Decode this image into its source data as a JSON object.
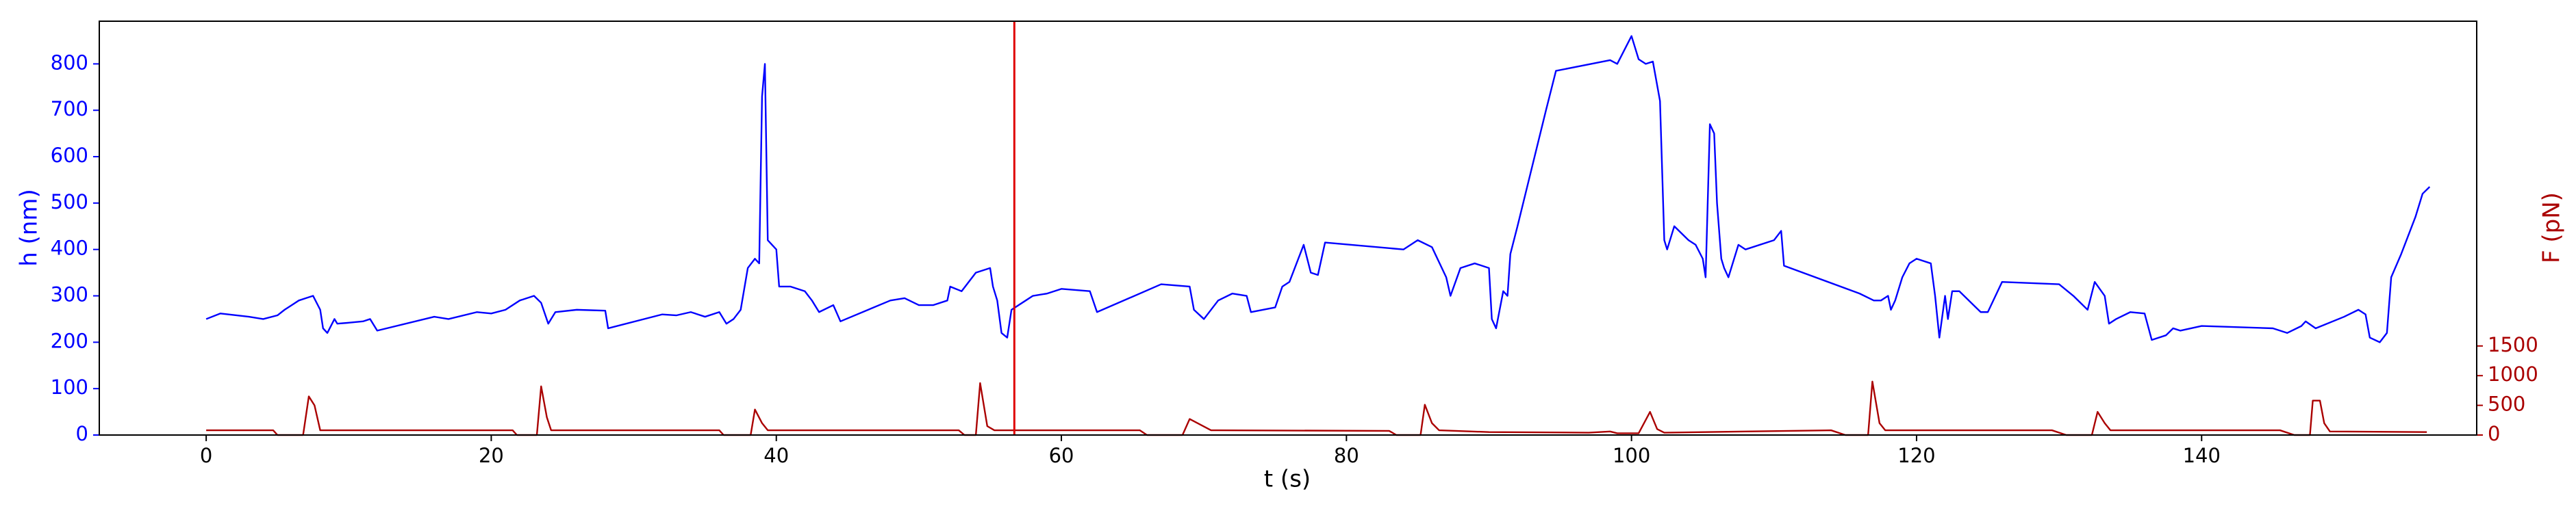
{
  "chart_data": {
    "type": "line",
    "xlabel": "t (s)",
    "ylabel": "h (nm)",
    "y2label": "F (pN)",
    "xlim": [
      -7.5,
      159.3
    ],
    "ylim": [
      0,
      892
    ],
    "y2lim": [
      0,
      6970
    ],
    "xticks": [
      0,
      20,
      40,
      60,
      80,
      100,
      120,
      140
    ],
    "yticks": [
      0,
      100,
      200,
      300,
      400,
      500,
      600,
      700,
      800
    ],
    "y2ticks": [
      0,
      500,
      1000,
      1500
    ],
    "cursor_x": 56.7,
    "cursor_color": "#e00000",
    "series": [
      {
        "name": "h",
        "color": "#0000ff",
        "x": [
          0,
          1,
          3,
          4,
          5,
          5.5,
          6,
          6.5,
          7,
          7.5,
          8,
          8.2,
          8.5,
          9,
          9.2,
          10,
          11,
          11.5,
          12,
          16,
          17,
          19,
          20,
          21,
          22,
          23,
          23.5,
          24,
          24.5,
          26,
          28,
          28.2,
          32,
          33,
          34,
          35,
          36,
          36.5,
          37,
          37.5,
          38,
          38.5,
          38.8,
          39,
          39.2,
          39.4,
          40,
          40.2,
          41,
          42,
          42.5,
          43,
          44,
          44.5,
          48,
          49,
          50,
          51,
          52,
          52.2,
          53,
          54,
          55,
          55.2,
          55.5,
          55.8,
          56.2,
          56.5,
          57.5,
          58,
          59,
          60,
          62,
          62.5,
          67,
          69,
          69.3,
          70,
          71,
          72,
          73,
          73.3,
          75,
          75.5,
          76,
          77,
          77.5,
          78,
          78.5,
          84,
          85,
          86,
          87,
          87.3,
          88,
          89,
          90,
          90.2,
          90.5,
          91,
          91.3,
          91.5,
          92,
          94,
          94.7,
          98.5,
          99,
          99.5,
          100,
          100.5,
          101,
          101.5,
          102,
          102.3,
          102.5,
          103,
          104,
          104.5,
          105,
          105.2,
          105.5,
          105.8,
          106,
          106.3,
          106.5,
          106.8,
          107.5,
          108,
          110,
          110.5,
          110.7,
          116,
          117,
          117.5,
          118,
          118.2,
          118.5,
          119,
          119.5,
          120,
          121,
          121.3,
          121.6,
          122,
          122.2,
          122.5,
          123,
          124,
          124.5,
          125,
          126,
          130,
          131,
          132,
          132.5,
          133.2,
          133.5,
          134,
          135,
          136,
          136.5,
          137.5,
          138,
          138.5,
          140,
          145,
          146,
          147,
          147.3,
          148,
          150,
          151,
          151.5,
          151.8,
          152.5,
          153,
          153.3,
          154,
          155,
          155.5,
          156
        ],
        "values": [
          250,
          262,
          255,
          250,
          258,
          270,
          280,
          290,
          295,
          300,
          270,
          230,
          220,
          250,
          240,
          242,
          245,
          250,
          225,
          255,
          250,
          265,
          262,
          270,
          290,
          300,
          285,
          240,
          265,
          270,
          268,
          230,
          260,
          258,
          265,
          255,
          265,
          240,
          250,
          270,
          360,
          380,
          370,
          730,
          800,
          420,
          400,
          320,
          320,
          310,
          290,
          265,
          280,
          245,
          290,
          295,
          280,
          280,
          290,
          320,
          310,
          350,
          360,
          320,
          290,
          220,
          210,
          270,
          290,
          300,
          305,
          315,
          310,
          265,
          325,
          320,
          270,
          250,
          290,
          305,
          300,
          265,
          275,
          320,
          330,
          410,
          350,
          345,
          415,
          400,
          420,
          405,
          340,
          300,
          360,
          370,
          360,
          250,
          230,
          310,
          300,
          390,
          450,
          700,
          785,
          808,
          800,
          830,
          860,
          810,
          800,
          805,
          720,
          420,
          400,
          450,
          420,
          410,
          380,
          340,
          670,
          650,
          500,
          380,
          360,
          340,
          410,
          400,
          420,
          440,
          365,
          305,
          290,
          290,
          300,
          270,
          290,
          340,
          370,
          380,
          370,
          300,
          210,
          300,
          250,
          310,
          310,
          280,
          265,
          265,
          330,
          325,
          300,
          270,
          330,
          300,
          240,
          250,
          265,
          262,
          205,
          215,
          230,
          225,
          235,
          230,
          220,
          235,
          245,
          230,
          255,
          270,
          260,
          210,
          200,
          220,
          340,
          390,
          470,
          520,
          535
        ]
      },
      {
        "name": "F",
        "color": "#aa0000",
        "axis": "y2",
        "x": [
          0,
          4.7,
          5,
          6.8,
          7.2,
          7.6,
          8,
          21.5,
          21.8,
          23.2,
          23.5,
          23.9,
          24.2,
          36,
          36.3,
          38.2,
          38.5,
          39,
          39.4,
          52.8,
          53.2,
          54,
          54.3,
          54.8,
          55.3,
          65.5,
          66,
          68.5,
          69,
          70.5,
          83,
          83.5,
          85.2,
          85.5,
          86,
          86.5,
          90,
          97,
          98.5,
          99,
          100.5,
          101.3,
          101.8,
          102.3,
          114,
          115,
          116.6,
          116.9,
          117.4,
          117.8,
          129.5,
          130.5,
          132.3,
          132.7,
          133.2,
          133.6,
          145.5,
          146.5,
          147.6,
          147.8,
          148.3,
          148.6,
          149,
          155.8
        ],
        "values": [
          80,
          80,
          0,
          0,
          650,
          500,
          80,
          80,
          0,
          0,
          820,
          300,
          80,
          80,
          0,
          0,
          430,
          200,
          80,
          80,
          0,
          0,
          875,
          150,
          80,
          80,
          0,
          0,
          270,
          80,
          70,
          0,
          0,
          510,
          200,
          80,
          50,
          40,
          60,
          30,
          30,
          390,
          100,
          40,
          80,
          0,
          0,
          900,
          200,
          80,
          80,
          0,
          0,
          390,
          200,
          80,
          80,
          0,
          0,
          580,
          580,
          200,
          60,
          50
        ]
      }
    ]
  }
}
